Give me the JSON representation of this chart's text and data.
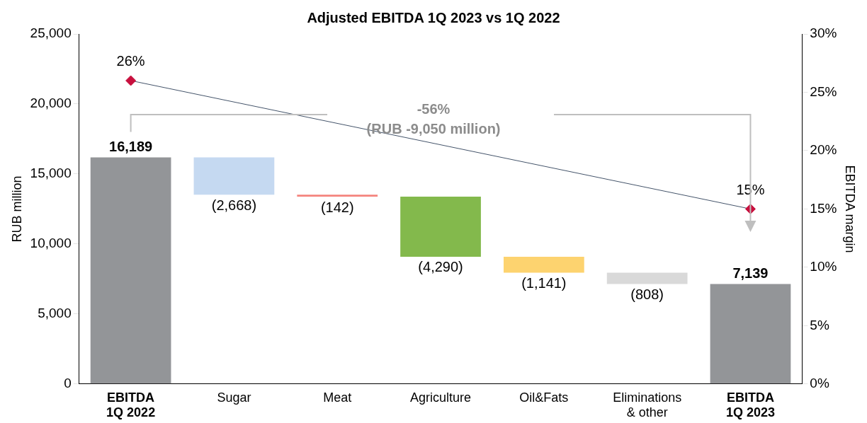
{
  "chart_data": {
    "type": "bar",
    "title": "Adjusted EBITDA 1Q 2023 vs 1Q 2022",
    "categories": [
      "EBITDA\n1Q 2022",
      "Sugar",
      "Meat",
      "Agriculture",
      "Oil&Fats",
      "Eliminations\n& other",
      "EBITDA\n1Q 2023"
    ],
    "values": [
      16189,
      -2668,
      -142,
      -4290,
      -1141,
      -808,
      7139
    ],
    "base": [
      0,
      16189,
      13521,
      13379,
      9089,
      7948,
      0
    ],
    "colors": [
      "#939598",
      "#c5d9f1",
      "#f4837d",
      "#83b94c",
      "#fdd36f",
      "#d9d9d9",
      "#939598"
    ],
    "value_labels": [
      "16,189",
      "(2,668)",
      "(142)",
      "(4,290)",
      "(1,141)",
      "(808)",
      "7,139"
    ],
    "series": [
      {
        "type": "line",
        "axis": "y2",
        "color": "#c8103e",
        "marker": "diamond",
        "x": [
          "EBITDA\n1Q 2022",
          "EBITDA\n1Q 2023"
        ],
        "values": [
          26,
          15
        ],
        "value_labels": [
          "26%",
          "15%"
        ]
      }
    ],
    "ylabel": "RUB million",
    "y2label": "EBITDA margin",
    "ylim": [
      0,
      25000
    ],
    "yticks": [
      {
        "value": 0,
        "label": "0"
      },
      {
        "value": 5000,
        "label": "5,000"
      },
      {
        "value": 10000,
        "label": "10,000"
      },
      {
        "value": 15000,
        "label": "15,000"
      },
      {
        "value": 20000,
        "label": "20,000"
      },
      {
        "value": 25000,
        "label": "25,000"
      }
    ],
    "y2lim": [
      0,
      30
    ],
    "y2ticks": [
      {
        "value": 0,
        "label": "0%"
      },
      {
        "value": 5,
        "label": "5%"
      },
      {
        "value": 10,
        "label": "10%"
      },
      {
        "value": 15,
        "label": "15%"
      },
      {
        "value": 20,
        "label": "20%"
      },
      {
        "value": 25,
        "label": "25%"
      },
      {
        "value": 30,
        "label": "30%"
      }
    ],
    "annotations": [
      "-56%",
      "(RUB -9,050 million)"
    ],
    "grid": false,
    "legend": false
  }
}
